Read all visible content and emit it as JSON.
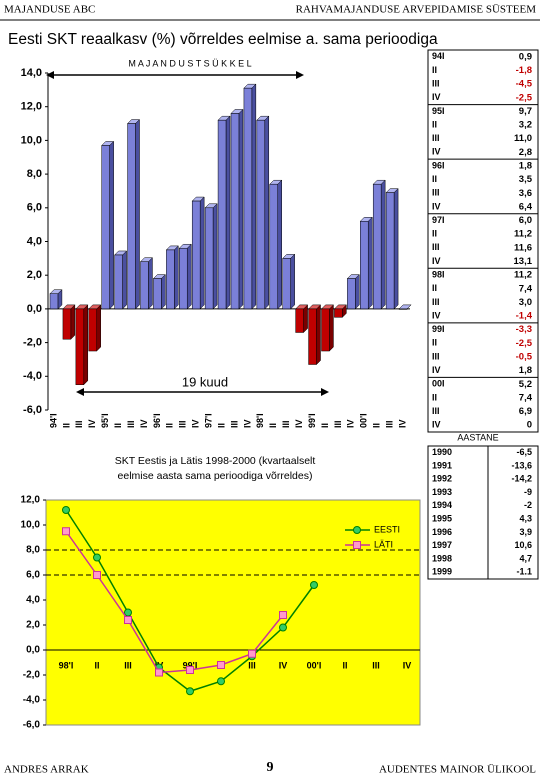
{
  "header": {
    "left": "MAJANDUSE ABC",
    "right": "RAHVAMAJANDUSE ARVEPIDAMISE SÜSTEEM"
  },
  "chart_data": [
    {
      "type": "bar",
      "title": "Eesti SKT reaalkasv (%) võrreldes eelmise a. sama perioodiga",
      "annotations": [
        "M A J A N D U S T S Ü K K E L",
        "19 kuud"
      ],
      "categories": [
        "94'I",
        "II",
        "III",
        "IV",
        "95'I",
        "II",
        "III",
        "IV",
        "96'I",
        "II",
        "III",
        "IV",
        "97'I",
        "II",
        "III",
        "IV",
        "98'I",
        "II",
        "III",
        "IV",
        "99'I",
        "II",
        "III",
        "IV",
        "00'I",
        "II",
        "III",
        "IV"
      ],
      "values": [
        0.9,
        -1.8,
        -4.5,
        -2.5,
        9.7,
        3.2,
        11.0,
        2.8,
        1.8,
        3.5,
        3.6,
        6.4,
        6.0,
        11.2,
        11.6,
        13.1,
        11.2,
        7.4,
        3.0,
        -1.4,
        -3.3,
        -2.5,
        -0.5,
        1.8,
        5.2,
        7.4,
        6.9,
        0
      ],
      "color": "#7b80d8",
      "negative_color": "#c00000",
      "ylim": [
        -6,
        14
      ],
      "yticks": [
        {
          "value": 14,
          "label": "14,0"
        },
        {
          "value": 12,
          "label": "12,0"
        },
        {
          "value": 10,
          "label": "10,0"
        },
        {
          "value": 8,
          "label": "8,0"
        },
        {
          "value": 6,
          "label": "6,0"
        },
        {
          "value": 4,
          "label": "4,0"
        },
        {
          "value": 2,
          "label": "2,0"
        },
        {
          "value": 0,
          "label": "0,0"
        },
        {
          "value": -2,
          "label": "-2,0"
        },
        {
          "value": -4,
          "label": "-4,0"
        },
        {
          "value": -6,
          "label": "-6,0"
        }
      ]
    },
    {
      "type": "line",
      "title": "SKT Eestis ja Lätis 1998-2000 (kvartaalselt eelmise aasta sama perioodiga võrreldes)",
      "categories": [
        "98'I",
        "II",
        "III",
        "IV",
        "99'I",
        "II",
        "III",
        "IV",
        "00'I",
        "II",
        "III",
        "IV"
      ],
      "series": [
        {
          "name": "EESTI",
          "color": "#008000",
          "marker_color": "#33cc66",
          "values": [
            11.2,
            7.4,
            3.0,
            -1.4,
            -3.3,
            -2.5,
            -0.5,
            1.8,
            5.2,
            null,
            null,
            null
          ]
        },
        {
          "name": "LÄTI",
          "color": "#cc3399",
          "marker_color": "#ff99cc",
          "values": [
            9.5,
            6.0,
            2.4,
            -1.8,
            -1.6,
            -1.2,
            -0.3,
            2.8,
            null,
            null,
            null,
            null
          ]
        }
      ],
      "reference_lines": [
        8,
        6
      ],
      "background": "#ffff00",
      "ylim": [
        -6,
        12
      ],
      "yticks": [
        {
          "value": 12,
          "label": "12,0"
        },
        {
          "value": 10,
          "label": "10,0"
        },
        {
          "value": 8,
          "label": "8,0"
        },
        {
          "value": 6,
          "label": "6,0"
        },
        {
          "value": 4,
          "label": "4,0"
        },
        {
          "value": 2,
          "label": "2,0"
        },
        {
          "value": 0,
          "label": "0,0"
        },
        {
          "value": -2,
          "label": "-2,0"
        },
        {
          "value": -4,
          "label": "-4,0"
        },
        {
          "value": -6,
          "label": "-6,0"
        }
      ]
    }
  ],
  "quarter_table": {
    "rows": [
      [
        "94I",
        "0,9"
      ],
      [
        "II",
        "-1,8"
      ],
      [
        "III",
        "-4,5"
      ],
      [
        "IV",
        "-2,5"
      ],
      [
        "95I",
        "9,7"
      ],
      [
        "II",
        "3,2"
      ],
      [
        "III",
        "11,0"
      ],
      [
        "IV",
        "2,8"
      ],
      [
        "96I",
        "1,8"
      ],
      [
        "II",
        "3,5"
      ],
      [
        "III",
        "3,6"
      ],
      [
        "IV",
        "6,4"
      ],
      [
        "97I",
        "6,0"
      ],
      [
        "II",
        "11,2"
      ],
      [
        "III",
        "11,6"
      ],
      [
        "IV",
        "13,1"
      ],
      [
        "98I",
        "11,2"
      ],
      [
        "II",
        "7,4"
      ],
      [
        "III",
        "3,0"
      ],
      [
        "IV",
        "-1,4"
      ],
      [
        "99I",
        "-3,3"
      ],
      [
        "II",
        "-2,5"
      ],
      [
        "III",
        "-0,5"
      ],
      [
        "IV",
        "1,8"
      ],
      [
        "00I",
        "5,2"
      ],
      [
        "II",
        "7,4"
      ],
      [
        "III",
        "6,9"
      ],
      [
        "IV",
        "0"
      ]
    ]
  },
  "annual_table": {
    "title": "AASTANE",
    "rows": [
      [
        "1990",
        "-6,5"
      ],
      [
        "1991",
        "-13,6"
      ],
      [
        "1992",
        "-14,2"
      ],
      [
        "1993",
        "-9"
      ],
      [
        "1994",
        "-2"
      ],
      [
        "1995",
        "4,3"
      ],
      [
        "1996",
        "3,9"
      ],
      [
        "1997",
        "10,6"
      ],
      [
        "1998",
        "4,7"
      ],
      [
        "1999",
        "-1.1"
      ]
    ]
  },
  "footer": {
    "left": "ANDRES ARRAK",
    "page": "9",
    "right": "AUDENTES MAINOR ÜLIKOOL"
  }
}
